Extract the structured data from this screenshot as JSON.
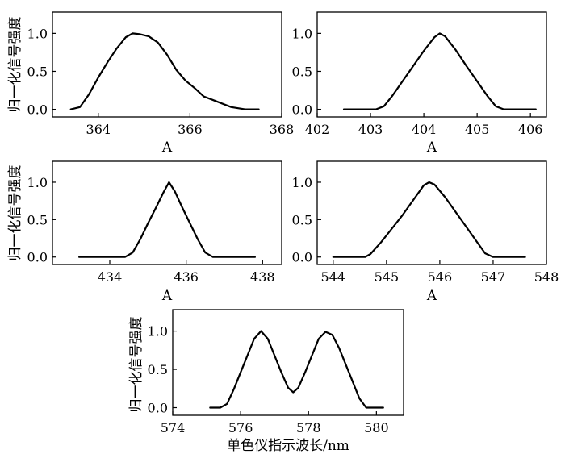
{
  "chart_data": [
    {
      "type": "line",
      "xlabel": "A",
      "ylabel": "归一化信号强度",
      "xlim": [
        363,
        368
      ],
      "ylim": [
        -0.1,
        1.28
      ],
      "xticks": [
        364,
        366,
        368
      ],
      "yticks": [
        0.0,
        0.5,
        1.0
      ],
      "xtick_labels": [
        "364",
        "366",
        "368"
      ],
      "ytick_labels": [
        "0.0",
        "0.5",
        "1.0"
      ],
      "series": [
        {
          "x": [
            363.4,
            363.6,
            363.8,
            364.0,
            364.2,
            364.4,
            364.6,
            364.75,
            364.9,
            365.1,
            365.3,
            365.5,
            365.7,
            365.9,
            366.1,
            366.3,
            366.6,
            366.9,
            367.2,
            367.5
          ],
          "y": [
            0.0,
            0.03,
            0.2,
            0.42,
            0.62,
            0.8,
            0.95,
            1.0,
            0.99,
            0.96,
            0.88,
            0.72,
            0.52,
            0.38,
            0.28,
            0.17,
            0.1,
            0.03,
            0.0,
            0.0
          ]
        }
      ]
    },
    {
      "type": "line",
      "xlabel": "A",
      "ylabel": "",
      "xlim": [
        402,
        406.3
      ],
      "ylim": [
        -0.1,
        1.28
      ],
      "xticks": [
        402,
        403,
        404,
        405,
        406
      ],
      "yticks": [
        0.0,
        0.5,
        1.0
      ],
      "xtick_labels": [
        "402",
        "403",
        "404",
        "405",
        "406"
      ],
      "ytick_labels": [
        "0.0",
        "0.5",
        "1.0"
      ],
      "series": [
        {
          "x": [
            402.5,
            402.8,
            403.1,
            403.25,
            403.4,
            403.6,
            403.8,
            404.0,
            404.2,
            404.3,
            404.4,
            404.6,
            404.8,
            405.0,
            405.2,
            405.35,
            405.5,
            405.8,
            406.1
          ],
          "y": [
            0.0,
            0.0,
            0.0,
            0.04,
            0.17,
            0.37,
            0.57,
            0.77,
            0.95,
            1.0,
            0.96,
            0.78,
            0.57,
            0.37,
            0.17,
            0.04,
            0.0,
            0.0,
            0.0
          ]
        }
      ]
    },
    {
      "type": "line",
      "xlabel": "A",
      "ylabel": "归一化信号强度",
      "xlim": [
        432.5,
        438.5
      ],
      "ylim": [
        -0.1,
        1.28
      ],
      "xticks": [
        434,
        436,
        438
      ],
      "yticks": [
        0.0,
        0.5,
        1.0
      ],
      "xtick_labels": [
        "434",
        "436",
        "438"
      ],
      "ytick_labels": [
        "0.0",
        "0.5",
        "1.0"
      ],
      "series": [
        {
          "x": [
            433.2,
            433.6,
            434.0,
            434.4,
            434.6,
            434.8,
            435.0,
            435.2,
            435.4,
            435.55,
            435.7,
            435.9,
            436.1,
            436.3,
            436.5,
            436.7,
            437.0,
            437.4,
            437.8
          ],
          "y": [
            0.0,
            0.0,
            0.0,
            0.0,
            0.06,
            0.24,
            0.45,
            0.65,
            0.86,
            1.0,
            0.88,
            0.66,
            0.45,
            0.24,
            0.06,
            0.0,
            0.0,
            0.0,
            0.0
          ]
        }
      ]
    },
    {
      "type": "line",
      "xlabel": "A",
      "ylabel": "",
      "xlim": [
        543.7,
        548
      ],
      "ylim": [
        -0.1,
        1.28
      ],
      "xticks": [
        544,
        545,
        546,
        547,
        548
      ],
      "yticks": [
        0.0,
        0.5,
        1.0
      ],
      "xtick_labels": [
        "544",
        "545",
        "546",
        "547",
        "548"
      ],
      "ytick_labels": [
        "0.0",
        "0.5",
        "1.0"
      ],
      "series": [
        {
          "x": [
            544.0,
            544.3,
            544.6,
            544.7,
            544.9,
            545.1,
            545.3,
            545.5,
            545.7,
            545.8,
            545.9,
            546.1,
            546.3,
            546.5,
            546.7,
            546.85,
            547.0,
            547.3,
            547.6
          ],
          "y": [
            0.0,
            0.0,
            0.0,
            0.04,
            0.2,
            0.38,
            0.56,
            0.76,
            0.96,
            1.0,
            0.97,
            0.8,
            0.6,
            0.4,
            0.2,
            0.05,
            0.0,
            0.0,
            0.0
          ]
        }
      ]
    },
    {
      "type": "line",
      "xlabel": "单色仪指示波长/nm",
      "ylabel": "归一化信号强度",
      "xlim": [
        574,
        580.8
      ],
      "ylim": [
        -0.1,
        1.28
      ],
      "xticks": [
        574,
        576,
        578,
        580
      ],
      "yticks": [
        0.0,
        0.5,
        1.0
      ],
      "xtick_labels": [
        "574",
        "576",
        "578",
        "580"
      ],
      "ytick_labels": [
        "0.0",
        "0.5",
        "1.0"
      ],
      "series": [
        {
          "x": [
            575.1,
            575.4,
            575.6,
            575.8,
            576.0,
            576.2,
            576.4,
            576.6,
            576.8,
            577.0,
            577.2,
            577.4,
            577.55,
            577.7,
            577.9,
            578.1,
            578.3,
            578.5,
            578.7,
            578.9,
            579.1,
            579.3,
            579.5,
            579.7,
            579.9,
            580.2
          ],
          "y": [
            0.0,
            0.0,
            0.05,
            0.24,
            0.46,
            0.68,
            0.9,
            1.0,
            0.9,
            0.68,
            0.46,
            0.26,
            0.2,
            0.26,
            0.46,
            0.68,
            0.9,
            0.99,
            0.95,
            0.78,
            0.56,
            0.34,
            0.12,
            0.0,
            0.0,
            0.0
          ]
        }
      ]
    }
  ]
}
